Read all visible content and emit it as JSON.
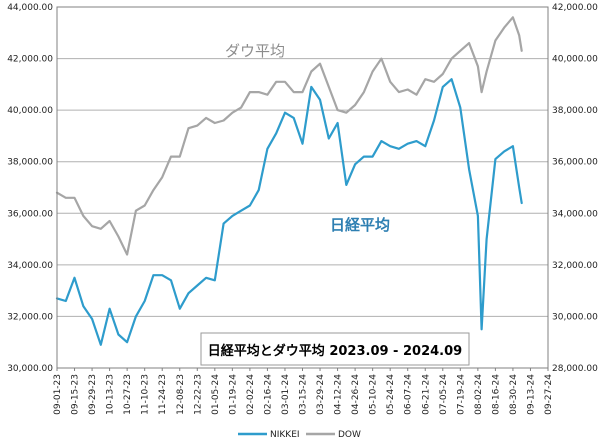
{
  "colors": {
    "nikkei": "#2e9ccc",
    "dow": "#a6a6a6",
    "grid": "#b0b0b0",
    "plot_border": "#808080",
    "plot_background": "#ffffff",
    "annotation_box_border": "#9a9a9a"
  },
  "chart_data": {
    "type": "line",
    "title": "日経平均とダウ平均 2023.09 - 2024.09",
    "annotations": {
      "dow": "ダウ平均",
      "nikkei": "日経平均"
    },
    "legend": {
      "position": "bottom",
      "entries": [
        "NIKKEI",
        "DOW"
      ]
    },
    "grid": "horizontal",
    "x_axis": {
      "type": "date",
      "min": "2023-09-01",
      "max": "2024-09-27",
      "tick_labels": [
        "09-01-23",
        "09-15-23",
        "09-29-23",
        "10-13-23",
        "10-27-23",
        "11-10-23",
        "11-24-23",
        "12-08-23",
        "12-22-23",
        "01-05-24",
        "01-19-24",
        "02-02-24",
        "02-16-24",
        "03-01-24",
        "03-15-24",
        "03-29-24",
        "04-12-24",
        "04-26-24",
        "05-10-24",
        "05-24-24",
        "06-07-24",
        "06-21-24",
        "07-05-24",
        "07-19-24",
        "08-02-24",
        "08-16-24",
        "08-30-24",
        "09-13-24",
        "09-27-24"
      ]
    },
    "y_left": {
      "series": "NIKKEI",
      "min": 30000,
      "max": 44000,
      "tick_labels": [
        "30,000.00",
        "32,000.00",
        "34,000.00",
        "36,000.00",
        "38,000.00",
        "40,000.00",
        "42,000.00",
        "44,000.00"
      ]
    },
    "y_right": {
      "series": "DOW",
      "min": 28000,
      "max": 42000,
      "tick_labels": [
        "28,000.00",
        "30,000.00",
        "32,000.00",
        "34,000.00",
        "36,000.00",
        "38,000.00",
        "40,000.00",
        "42,000.00"
      ]
    },
    "series": [
      {
        "name": "NIKKEI",
        "axis": "left",
        "points": [
          [
            "2023-09-01",
            32700
          ],
          [
            "2023-09-08",
            32600
          ],
          [
            "2023-09-15",
            33500
          ],
          [
            "2023-09-22",
            32400
          ],
          [
            "2023-09-29",
            31900
          ],
          [
            "2023-10-06",
            30900
          ],
          [
            "2023-10-13",
            32300
          ],
          [
            "2023-10-20",
            31300
          ],
          [
            "2023-10-27",
            31000
          ],
          [
            "2023-11-03",
            32000
          ],
          [
            "2023-11-10",
            32600
          ],
          [
            "2023-11-17",
            33600
          ],
          [
            "2023-11-24",
            33600
          ],
          [
            "2023-12-01",
            33400
          ],
          [
            "2023-12-08",
            32300
          ],
          [
            "2023-12-15",
            32900
          ],
          [
            "2023-12-22",
            33200
          ],
          [
            "2023-12-29",
            33500
          ],
          [
            "2024-01-05",
            33400
          ],
          [
            "2024-01-12",
            35600
          ],
          [
            "2024-01-19",
            35900
          ],
          [
            "2024-01-26",
            36100
          ],
          [
            "2024-02-02",
            36300
          ],
          [
            "2024-02-09",
            36900
          ],
          [
            "2024-02-16",
            38500
          ],
          [
            "2024-02-23",
            39100
          ],
          [
            "2024-03-01",
            39900
          ],
          [
            "2024-03-08",
            39700
          ],
          [
            "2024-03-15",
            38700
          ],
          [
            "2024-03-22",
            40900
          ],
          [
            "2024-03-29",
            40400
          ],
          [
            "2024-04-05",
            38900
          ],
          [
            "2024-04-12",
            39500
          ],
          [
            "2024-04-19",
            37100
          ],
          [
            "2024-04-26",
            37900
          ],
          [
            "2024-05-03",
            38200
          ],
          [
            "2024-05-10",
            38200
          ],
          [
            "2024-05-17",
            38800
          ],
          [
            "2024-05-24",
            38600
          ],
          [
            "2024-05-31",
            38500
          ],
          [
            "2024-06-07",
            38700
          ],
          [
            "2024-06-14",
            38800
          ],
          [
            "2024-06-21",
            38600
          ],
          [
            "2024-06-28",
            39600
          ],
          [
            "2024-07-05",
            40900
          ],
          [
            "2024-07-12",
            41200
          ],
          [
            "2024-07-19",
            40100
          ],
          [
            "2024-07-26",
            37700
          ],
          [
            "2024-08-02",
            35900
          ],
          [
            "2024-08-05",
            31500
          ],
          [
            "2024-08-09",
            35000
          ],
          [
            "2024-08-16",
            38100
          ],
          [
            "2024-08-23",
            38400
          ],
          [
            "2024-08-30",
            38600
          ],
          [
            "2024-09-04",
            37000
          ],
          [
            "2024-09-06",
            36400
          ]
        ]
      },
      {
        "name": "DOW",
        "axis": "right",
        "points": [
          [
            "2023-09-01",
            34800
          ],
          [
            "2023-09-08",
            34600
          ],
          [
            "2023-09-15",
            34600
          ],
          [
            "2023-09-22",
            33900
          ],
          [
            "2023-09-29",
            33500
          ],
          [
            "2023-10-06",
            33400
          ],
          [
            "2023-10-13",
            33700
          ],
          [
            "2023-10-20",
            33100
          ],
          [
            "2023-10-27",
            32400
          ],
          [
            "2023-11-03",
            34100
          ],
          [
            "2023-11-10",
            34300
          ],
          [
            "2023-11-17",
            34900
          ],
          [
            "2023-11-24",
            35400
          ],
          [
            "2023-12-01",
            36200
          ],
          [
            "2023-12-08",
            36200
          ],
          [
            "2023-12-15",
            37300
          ],
          [
            "2023-12-22",
            37400
          ],
          [
            "2023-12-29",
            37700
          ],
          [
            "2024-01-05",
            37500
          ],
          [
            "2024-01-12",
            37600
          ],
          [
            "2024-01-19",
            37900
          ],
          [
            "2024-01-26",
            38100
          ],
          [
            "2024-02-02",
            38700
          ],
          [
            "2024-02-09",
            38700
          ],
          [
            "2024-02-16",
            38600
          ],
          [
            "2024-02-23",
            39100
          ],
          [
            "2024-03-01",
            39100
          ],
          [
            "2024-03-08",
            38700
          ],
          [
            "2024-03-15",
            38700
          ],
          [
            "2024-03-22",
            39500
          ],
          [
            "2024-03-29",
            39800
          ],
          [
            "2024-04-05",
            38900
          ],
          [
            "2024-04-12",
            38000
          ],
          [
            "2024-04-19",
            37900
          ],
          [
            "2024-04-26",
            38200
          ],
          [
            "2024-05-03",
            38700
          ],
          [
            "2024-05-10",
            39500
          ],
          [
            "2024-05-17",
            40000
          ],
          [
            "2024-05-24",
            39100
          ],
          [
            "2024-05-31",
            38700
          ],
          [
            "2024-06-07",
            38800
          ],
          [
            "2024-06-14",
            38600
          ],
          [
            "2024-06-21",
            39200
          ],
          [
            "2024-06-28",
            39100
          ],
          [
            "2024-07-05",
            39400
          ],
          [
            "2024-07-12",
            40000
          ],
          [
            "2024-07-19",
            40300
          ],
          [
            "2024-07-26",
            40600
          ],
          [
            "2024-08-02",
            39700
          ],
          [
            "2024-08-05",
            38700
          ],
          [
            "2024-08-09",
            39500
          ],
          [
            "2024-08-16",
            40700
          ],
          [
            "2024-08-23",
            41200
          ],
          [
            "2024-08-30",
            41600
          ],
          [
            "2024-09-04",
            40900
          ],
          [
            "2024-09-06",
            40300
          ]
        ]
      }
    ]
  }
}
